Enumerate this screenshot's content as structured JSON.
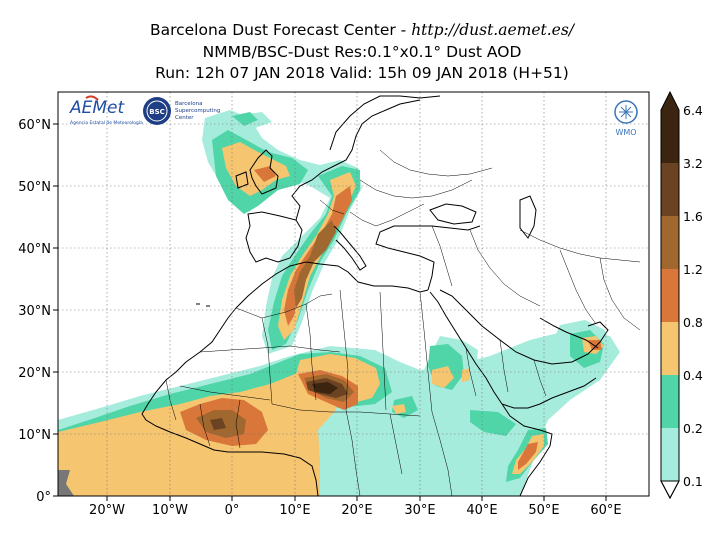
{
  "header": {
    "line1_prefix": "Barcelona Dust Forecast Center - ",
    "line1_url": "http://dust.aemet.es/",
    "line2": "NMMB/BSC-Dust   Res:0.1°x0.1°   Dust AOD",
    "line3": "Run: 12h 07 JAN 2018   Valid: 15h 09 JAN 2018 (H+51)"
  },
  "axes": {
    "x_ticks": [
      "20°W",
      "10°W",
      "0°",
      "10°E",
      "20°E",
      "30°E",
      "40°E",
      "50°E",
      "60°E"
    ],
    "y_ticks": [
      "60°N",
      "50°N",
      "40°N",
      "30°N",
      "20°N",
      "10°N",
      "0°"
    ]
  },
  "colorbar": {
    "labels": [
      "6.4",
      "3.2",
      "1.6",
      "1.2",
      "0.8",
      "0.4",
      "0.2",
      "0.1"
    ],
    "colors": [
      "#3b2410",
      "#6b4222",
      "#a0672f",
      "#d9773a",
      "#f6c570",
      "#4fd5a8",
      "#a6ecdd"
    ]
  },
  "logos": {
    "aemet": "AEMet",
    "aemet_sub": "Agencia Estatal de Meteorología",
    "bsc": "BSC",
    "bsc_sub1": "Barcelona",
    "bsc_sub2": "Supercomputing",
    "bsc_sub3": "Center",
    "wmo": "WMO"
  }
}
